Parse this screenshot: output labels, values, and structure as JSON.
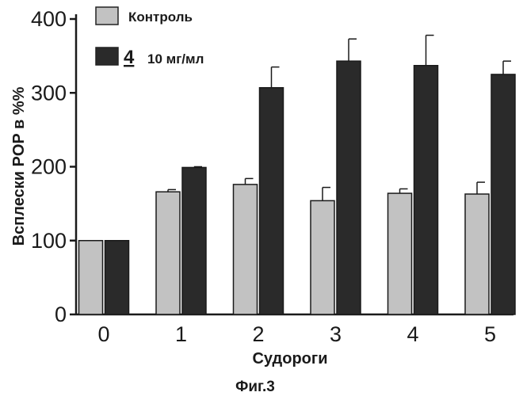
{
  "chart_data": {
    "type": "bar",
    "categories": [
      "0",
      "1",
      "2",
      "3",
      "4",
      "5"
    ],
    "series": [
      {
        "name": "Контроль",
        "color": "#c2c2c2",
        "values": [
          100,
          166,
          176,
          154,
          164,
          163
        ],
        "errors": [
          0,
          3,
          8,
          18,
          6,
          16
        ]
      },
      {
        "name_number": "4",
        "name_text": "10 мг/мл",
        "color": "#2a2a2a",
        "values": [
          100,
          199,
          307,
          343,
          337,
          325
        ],
        "errors": [
          0,
          1,
          28,
          30,
          41,
          18
        ]
      }
    ],
    "xlabel": "Судороги",
    "ylabel": "Всплески POP в %%",
    "ylim": [
      0,
      400
    ],
    "yticks": [
      0,
      100,
      200,
      300,
      400
    ],
    "grid": false,
    "legend_position": "top-left"
  },
  "caption": "Фиг.3"
}
